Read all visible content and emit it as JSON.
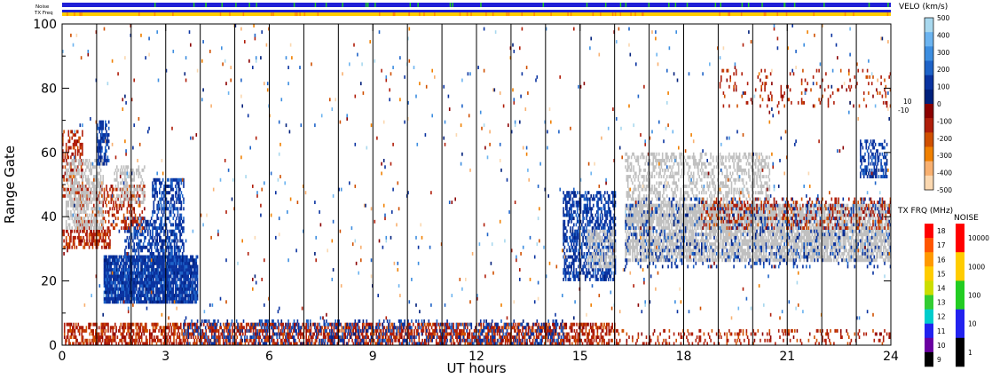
{
  "header_bars": {
    "noise_label": "Noise",
    "txfreq_label": "TX Freq"
  },
  "colors": {
    "noise_bar": "#1f1fd6",
    "noise_bar_marks": "#22cc22",
    "txfreq_bar_blue": "#1f1fd6",
    "txfreq_bar_yellow": "#ffcc00",
    "txfreq_bar_orange": "#ff8800",
    "ground_scatter": "#c0c0c0",
    "background": "#ffffff",
    "frame": "#000000"
  },
  "chart_data": {
    "type": "heatmap",
    "xlabel": "UT hours",
    "ylabel": "Range Gate",
    "xlim": [
      0,
      24
    ],
    "ylim": [
      0,
      100
    ],
    "x_ticks": [
      "0",
      "3",
      "6",
      "9",
      "12",
      "15",
      "18",
      "21",
      "24"
    ],
    "y_ticks": [
      "0",
      "20",
      "40",
      "60",
      "80",
      "100"
    ],
    "scan_boundaries_hours": [
      1,
      2,
      3,
      4,
      5,
      6,
      7,
      8,
      9,
      10,
      11,
      12,
      13,
      14,
      15,
      16,
      17,
      18,
      19,
      20,
      21,
      22,
      23
    ],
    "velocity_scale": {
      "title": "VELO (km/s)",
      "ticks": [
        "500",
        "400",
        "300",
        "200",
        "100",
        "0",
        "-100",
        "-200",
        "-300",
        "-400",
        "-500"
      ],
      "side_labels": [
        "10",
        "-10"
      ],
      "colors": [
        "#a8d8ee",
        "#6cb4f0",
        "#3d8ee0",
        "#1e63c8",
        "#0a33a0",
        "#00207c",
        "#8b0000",
        "#b01e0a",
        "#d05000",
        "#f08000",
        "#f8b070",
        "#fbd8b0"
      ]
    },
    "txfreq_scale": {
      "title": "TX FRQ (MHz)",
      "ticks": [
        "18",
        "17",
        "16",
        "15",
        "14",
        "13",
        "12",
        "11",
        "10",
        "9"
      ],
      "colors": [
        "#ff0000",
        "#ff5500",
        "#ff9900",
        "#ffcc00",
        "#ccdd00",
        "#33cc33",
        "#00cccc",
        "#2222ee",
        "#6a00a0",
        "#000000"
      ]
    },
    "noise_scale": {
      "title": "NOISE",
      "ticks": [
        "10000",
        "1000",
        "100",
        "10",
        "1"
      ],
      "colors": [
        "#ff0000",
        "#ffcc00",
        "#22cc22",
        "#2222ee",
        "#000000"
      ]
    },
    "regions": [
      {
        "kind": "velocity",
        "value": -150,
        "t0": 0.05,
        "t1": 16.0,
        "g0": 0,
        "g1": 7,
        "density": 0.55
      },
      {
        "kind": "velocity",
        "value": 150,
        "t0": 3.5,
        "t1": 14.5,
        "g0": 0,
        "g1": 8,
        "density": 0.22
      },
      {
        "kind": "velocity",
        "value": -150,
        "t0": 16.0,
        "t1": 24.0,
        "g0": 0,
        "g1": 5,
        "density": 0.18
      },
      {
        "kind": "velocity",
        "value": 150,
        "t0": 1.2,
        "t1": 3.9,
        "g0": 13,
        "g1": 28,
        "density": 0.9
      },
      {
        "kind": "velocity",
        "value": 150,
        "t0": 2.6,
        "t1": 3.5,
        "g0": 26,
        "g1": 52,
        "density": 0.55
      },
      {
        "kind": "velocity",
        "value": 150,
        "t0": 1.8,
        "t1": 2.6,
        "g0": 28,
        "g1": 40,
        "density": 0.45
      },
      {
        "kind": "velocity",
        "value": -150,
        "t0": 0.0,
        "t1": 1.4,
        "g0": 30,
        "g1": 36,
        "density": 0.55
      },
      {
        "kind": "velocity",
        "value": -150,
        "t0": 0.4,
        "t1": 2.4,
        "g0": 36,
        "g1": 50,
        "density": 0.35
      },
      {
        "kind": "velocity",
        "value": -150,
        "t0": 0.0,
        "t1": 0.6,
        "g0": 45,
        "g1": 67,
        "density": 0.35
      },
      {
        "kind": "ground",
        "value": 0,
        "t0": 0.1,
        "t1": 1.2,
        "g0": 36,
        "g1": 58,
        "density": 0.5
      },
      {
        "kind": "ground",
        "value": 0,
        "t0": 1.5,
        "t1": 2.4,
        "g0": 44,
        "g1": 56,
        "density": 0.4
      },
      {
        "kind": "velocity",
        "value": 150,
        "t0": 1.0,
        "t1": 1.35,
        "g0": 56,
        "g1": 70,
        "density": 0.6
      },
      {
        "kind": "velocity",
        "value": 150,
        "t0": 14.5,
        "t1": 16.0,
        "g0": 20,
        "g1": 48,
        "density": 0.55
      },
      {
        "kind": "ground",
        "value": 0,
        "t0": 15.2,
        "t1": 16.0,
        "g0": 24,
        "g1": 36,
        "density": 0.55
      },
      {
        "kind": "ground",
        "value": 0,
        "t0": 16.3,
        "t1": 24.0,
        "g0": 26,
        "g1": 44,
        "density": 0.72
      },
      {
        "kind": "ground",
        "value": 0,
        "t0": 16.3,
        "t1": 20.5,
        "g0": 38,
        "g1": 60,
        "density": 0.38
      },
      {
        "kind": "velocity",
        "value": 150,
        "t0": 16.3,
        "t1": 24.0,
        "g0": 24,
        "g1": 46,
        "density": 0.12
      },
      {
        "kind": "velocity",
        "value": -150,
        "t0": 18.5,
        "t1": 24.0,
        "g0": 36,
        "g1": 46,
        "density": 0.2
      },
      {
        "kind": "velocity",
        "value": -150,
        "t0": 19.0,
        "t1": 24.0,
        "g0": 74,
        "g1": 86,
        "density": 0.08
      },
      {
        "kind": "velocity",
        "value": 150,
        "t0": 23.1,
        "t1": 23.9,
        "g0": 52,
        "g1": 64,
        "density": 0.45
      },
      {
        "kind": "velocity",
        "value": 0,
        "t0": 0.0,
        "t1": 24.0,
        "g0": 8,
        "g1": 100,
        "density": 0.012
      }
    ]
  }
}
